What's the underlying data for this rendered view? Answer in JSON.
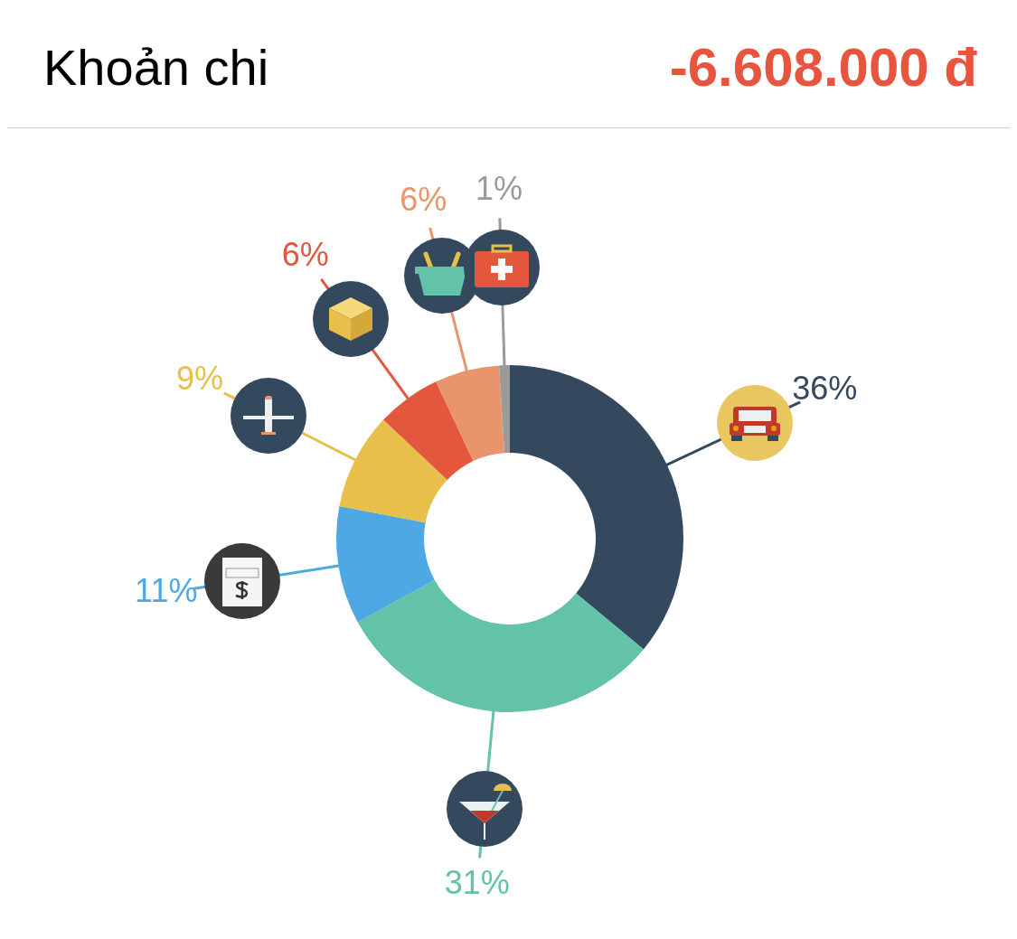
{
  "chart_data": {
    "type": "donut",
    "title": "Khoản chi",
    "subtitle": "-6.608.000 đ",
    "categories": [
      null,
      null,
      null,
      null,
      null,
      null,
      null
    ],
    "values": [
      36,
      31,
      11,
      9,
      6,
      6,
      1
    ],
    "colors": [
      "#34495e",
      "#63c3a8",
      "#4ea8e3",
      "#e8bf4a",
      "#e3573d",
      "#e8956d",
      "#9a9a9a"
    ],
    "value_labels": [
      "36%",
      "31%",
      "11%",
      "9%",
      "6%",
      "6%",
      "1%"
    ]
  }
}
